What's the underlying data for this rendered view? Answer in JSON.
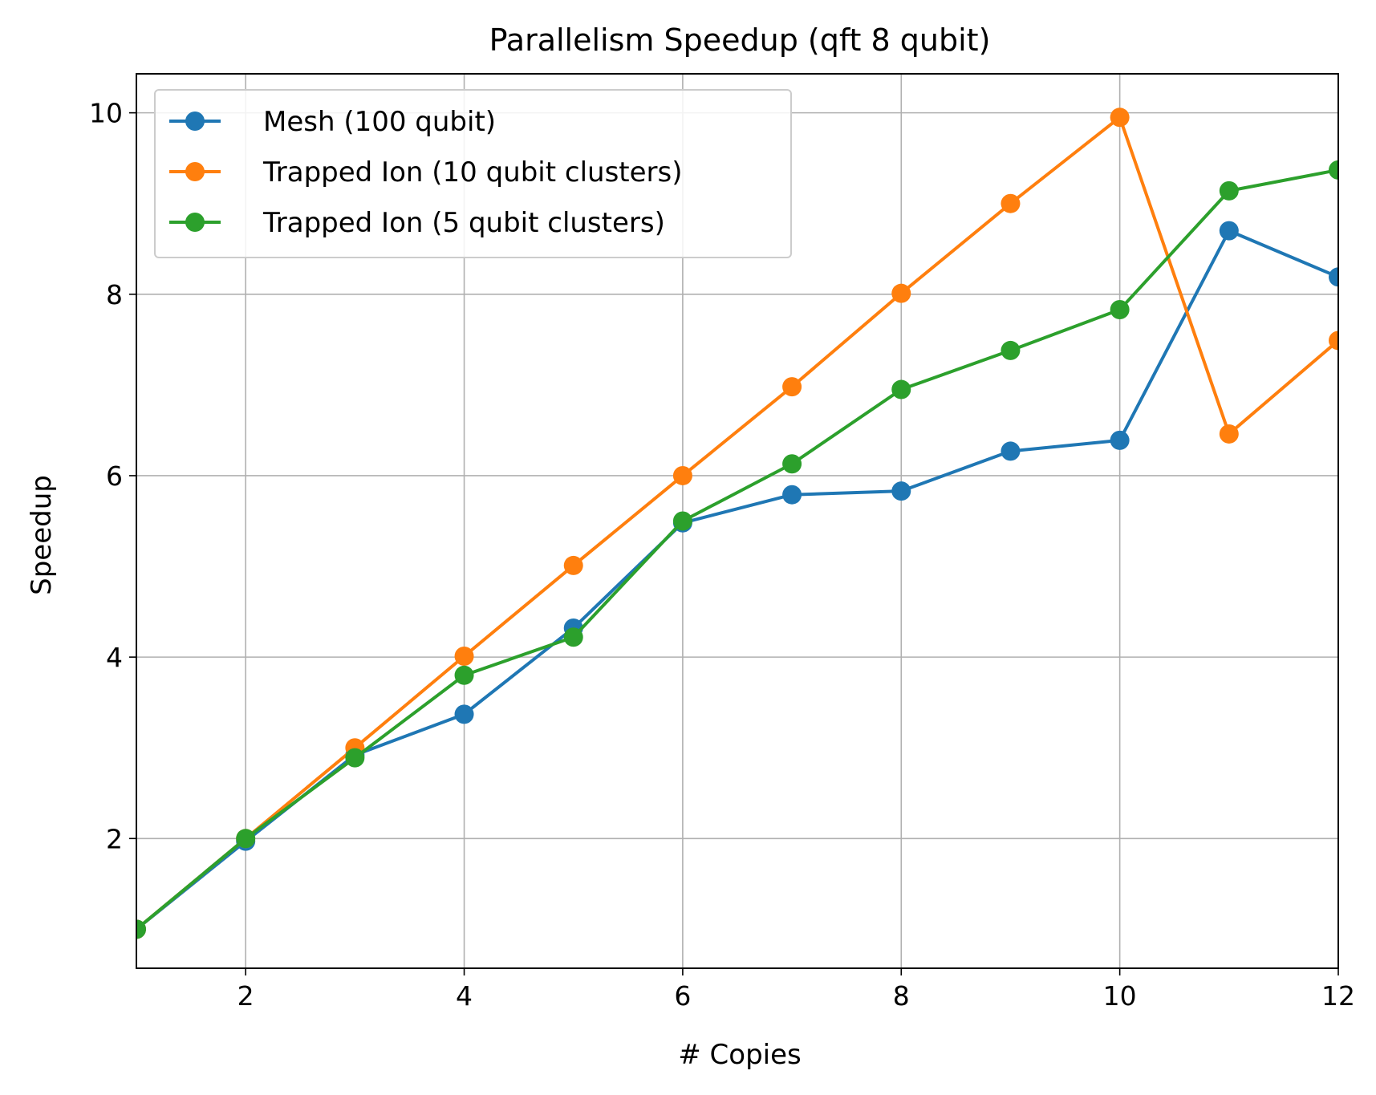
{
  "chart_data": {
    "type": "line",
    "title": "Parallelism Speedup (qft 8 qubit)",
    "xlabel": "# Copies",
    "ylabel": "Speedup",
    "xlim": [
      1,
      12
    ],
    "ylim": [
      0.57,
      10.43
    ],
    "xticks": [
      2,
      4,
      6,
      8,
      10,
      12
    ],
    "yticks": [
      2,
      4,
      6,
      8,
      10
    ],
    "grid": true,
    "legend_position": "top-left",
    "x": [
      1,
      2,
      3,
      4,
      5,
      6,
      7,
      8,
      9,
      10,
      11,
      12
    ],
    "series": [
      {
        "name": "Mesh (100 qubit)",
        "color": "#1f77b4",
        "values": [
          1.0,
          1.97,
          2.92,
          3.37,
          4.32,
          5.48,
          5.79,
          5.83,
          6.27,
          6.39,
          8.7,
          8.19
        ]
      },
      {
        "name": "Trapped Ion (10 qubit clusters)",
        "color": "#ff7f0e",
        "values": [
          1.0,
          2.0,
          3.0,
          4.01,
          5.01,
          6.0,
          6.98,
          8.01,
          9.0,
          9.95,
          6.46,
          7.49
        ]
      },
      {
        "name": "Trapped Ion (5 qubit clusters)",
        "color": "#2ca02c",
        "values": [
          1.0,
          2.0,
          2.89,
          3.8,
          4.22,
          5.5,
          6.13,
          6.95,
          7.38,
          7.83,
          9.14,
          9.37
        ]
      }
    ]
  }
}
